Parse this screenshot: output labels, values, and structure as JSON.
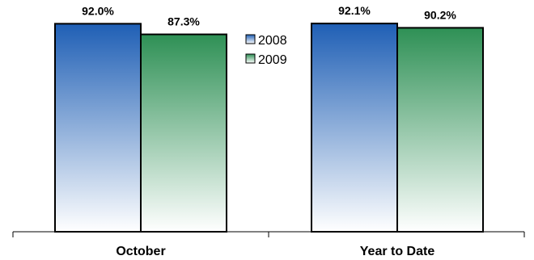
{
  "chart_data": {
    "type": "bar",
    "title": "",
    "xlabel": "",
    "ylabel": "",
    "categories": [
      "October",
      "Year to Date"
    ],
    "series": [
      {
        "name": "2008",
        "values": [
          92.0,
          92.1
        ],
        "labels": [
          "92.0%",
          "92.1%"
        ],
        "color_top": "#1f5fb5",
        "color_bottom": "#ffffff"
      },
      {
        "name": "2009",
        "values": [
          87.3,
          90.2
        ],
        "labels": [
          "87.3%",
          "90.2%"
        ],
        "color_top": "#2e9055",
        "color_bottom": "#ffffff"
      }
    ],
    "ylim": [
      0,
      100
    ],
    "grid": false,
    "legend_position": "top-center"
  }
}
